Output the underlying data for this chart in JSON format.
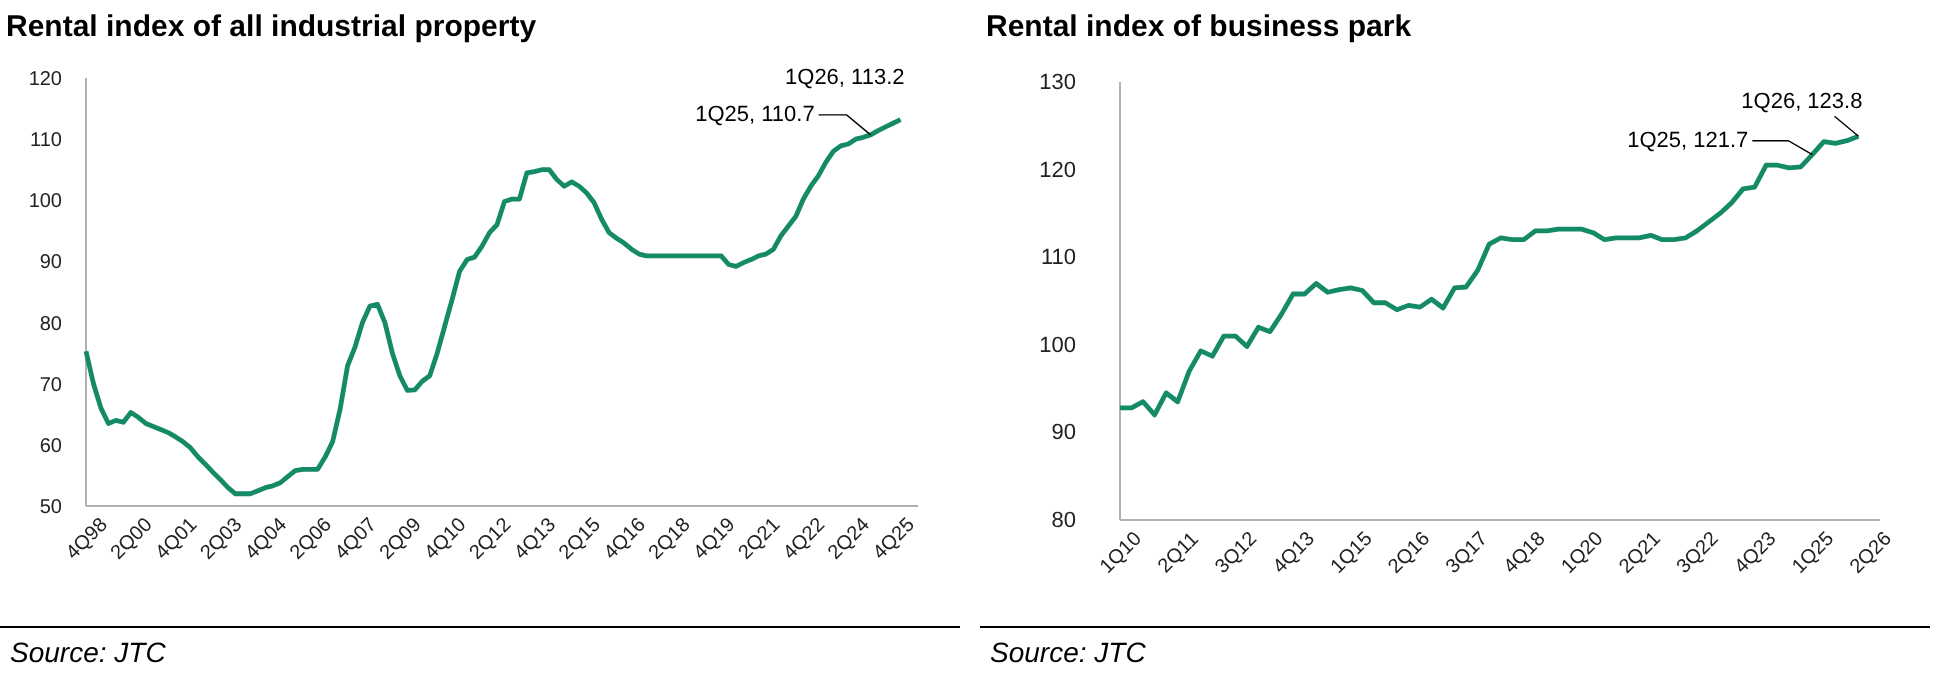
{
  "chart_data": [
    {
      "type": "line",
      "title": "Rental index of all industrial property",
      "categories": [
        "4Q98",
        null,
        null,
        null,
        null,
        null,
        "2Q00",
        null,
        null,
        null,
        null,
        null,
        "4Q01",
        null,
        null,
        null,
        null,
        null,
        "2Q03",
        null,
        null,
        null,
        null,
        null,
        "4Q04",
        null,
        null,
        null,
        null,
        null,
        "2Q06",
        null,
        null,
        null,
        null,
        null,
        "4Q07",
        null,
        null,
        null,
        null,
        null,
        "2Q09",
        null,
        null,
        null,
        null,
        null,
        "4Q10",
        null,
        null,
        null,
        null,
        null,
        "2Q12",
        null,
        null,
        null,
        null,
        null,
        "4Q13",
        null,
        null,
        null,
        null,
        null,
        "2Q15",
        null,
        null,
        null,
        null,
        null,
        "4Q16",
        null,
        null,
        null,
        null,
        null,
        "2Q18",
        null,
        null,
        null,
        null,
        null,
        "4Q19",
        null,
        null,
        null,
        null,
        null,
        "2Q21",
        null,
        null,
        null,
        null,
        null,
        "4Q22",
        null,
        null,
        null,
        null,
        null,
        "2Q24",
        null,
        null,
        null,
        null,
        null,
        "4Q25",
        null,
        null
      ],
      "series": [
        {
          "color": "#158a66",
          "values": [
            75.3,
            70,
            66,
            63.5,
            64,
            63.7,
            65.3,
            64.5,
            63.5,
            63,
            62.5,
            62,
            61.3,
            60.5,
            59.5,
            58,
            56.8,
            55.5,
            54.3,
            53,
            52,
            52,
            52,
            52.5,
            53,
            53.3,
            53.8,
            54.8,
            55.8,
            56,
            56,
            56,
            58,
            60.5,
            65.8,
            72.9,
            76,
            80,
            82.7,
            83,
            80,
            75,
            71.3,
            68.9,
            69,
            70.4,
            71.3,
            75,
            79.4,
            83.8,
            88.4,
            90.3,
            90.7,
            92.5,
            94.7,
            96,
            99.8,
            100.2,
            100.2,
            104.5,
            104.7,
            105,
            105,
            103.4,
            102.3,
            103,
            102.3,
            101.2,
            99.6,
            96.9,
            94.7,
            93.8,
            93,
            92,
            91.2,
            90.9,
            90.9,
            90.9,
            90.9,
            90.9,
            90.9,
            90.9,
            90.9,
            90.9,
            90.9,
            90.9,
            89.5,
            89.2,
            89.8,
            90.3,
            90.9,
            91.2,
            92,
            94.2,
            95.8,
            97.4,
            100.2,
            102.3,
            104,
            106.2,
            108,
            108.9,
            109.2,
            110,
            110.3,
            110.7,
            111.4,
            112,
            112.6,
            113.2,
            null
          ]
        }
      ],
      "ylim": [
        50,
        120
      ],
      "yticks": [
        50,
        60,
        70,
        80,
        90,
        100,
        110,
        120
      ],
      "grid": false,
      "annotations": [
        "1Q25, 110.7",
        "1Q26, 113.2",
        "Source: JTC"
      ]
    },
    {
      "type": "line",
      "title": "Rental index of business park",
      "categories": [
        "1Q10",
        null,
        null,
        null,
        null,
        "2Q11",
        null,
        null,
        null,
        null,
        "3Q12",
        null,
        null,
        null,
        null,
        "4Q13",
        null,
        null,
        null,
        null,
        "1Q15",
        null,
        null,
        null,
        null,
        "2Q16",
        null,
        null,
        null,
        null,
        "3Q17",
        null,
        null,
        null,
        null,
        "4Q18",
        null,
        null,
        null,
        null,
        "1Q20",
        null,
        null,
        null,
        null,
        "2Q21",
        null,
        null,
        null,
        null,
        "3Q22",
        null,
        null,
        null,
        null,
        "4Q23",
        null,
        null,
        null,
        null,
        "1Q25",
        null,
        null,
        null,
        null,
        "2Q26"
      ],
      "series": [
        {
          "color": "#158a66",
          "values": [
            92.8,
            92.8,
            93.5,
            92,
            94.5,
            93.5,
            97,
            99.3,
            98.7,
            101,
            101,
            99.8,
            102,
            101.5,
            103.5,
            105.8,
            105.8,
            107,
            106,
            106.3,
            106.5,
            106.2,
            104.8,
            104.8,
            104,
            104.5,
            104.3,
            105.2,
            104.2,
            106.5,
            106.6,
            108.5,
            111.5,
            112.2,
            112,
            112,
            113,
            113,
            113.2,
            113.2,
            113.2,
            112.8,
            112,
            112.2,
            112.2,
            112.2,
            112.5,
            112,
            112,
            112.2,
            113,
            114,
            115,
            116.2,
            117.8,
            118,
            120.5,
            120.5,
            120.2,
            120.3,
            121.7,
            123.2,
            123,
            123.3,
            123.8,
            null
          ]
        }
      ],
      "ylim": [
        80,
        130
      ],
      "yticks": [
        80,
        90,
        100,
        110,
        120,
        130
      ],
      "grid": false,
      "annotations": [
        {
          "text": "1Q25, 121.7",
          "x": "1Q25",
          "y": 121.7
        },
        "1Q26, 123.8",
        "Source: JTC"
      ]
    }
  ]
}
